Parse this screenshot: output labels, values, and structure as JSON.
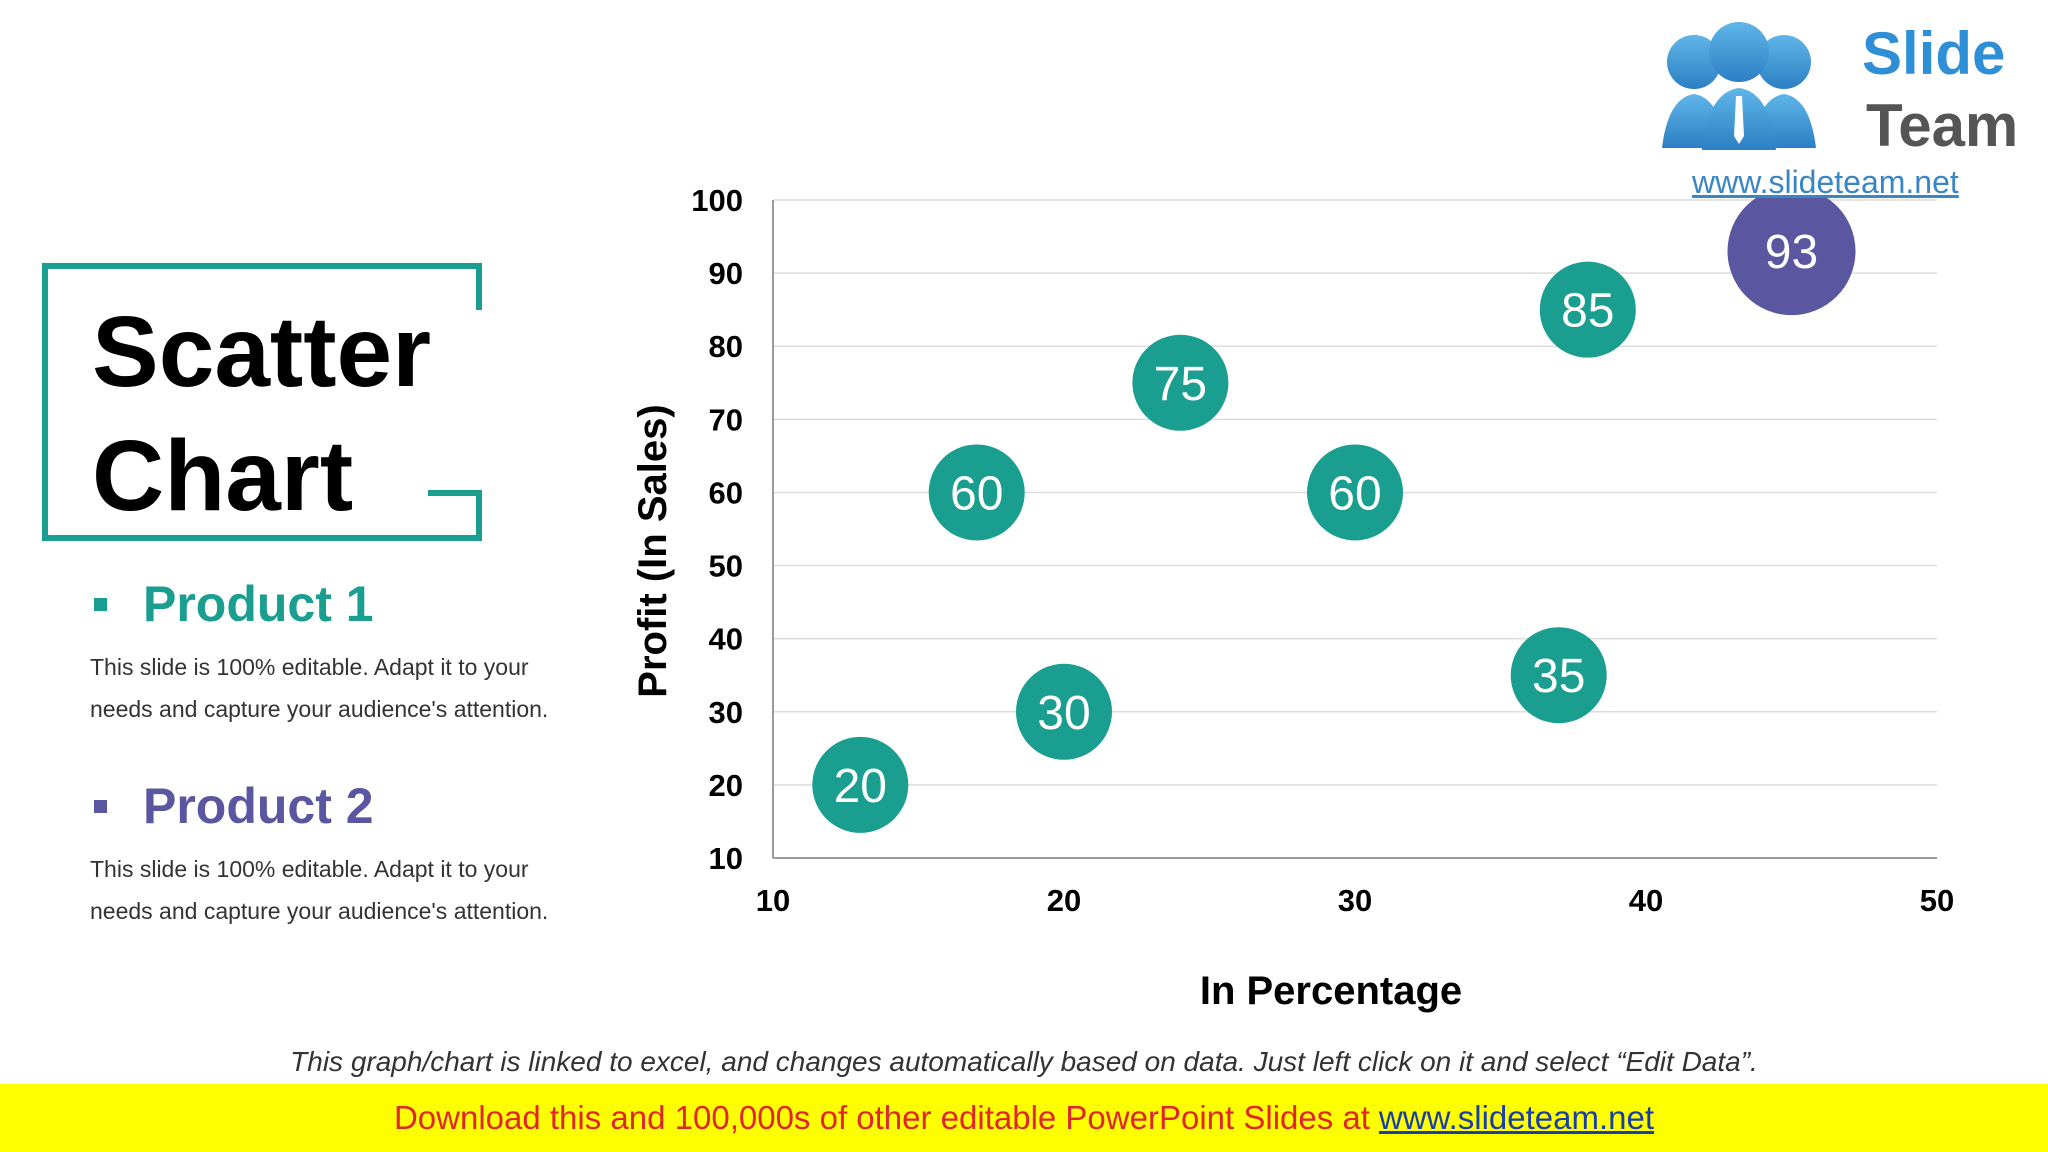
{
  "slide": {
    "title_line1": "Scatter",
    "title_line2": "Chart",
    "products": [
      {
        "name": "Product 1",
        "desc_line1": "This slide is 100% editable. Adapt it to your",
        "desc_line2": "needs and capture your audience's attention.",
        "color": "#1a9e8f"
      },
      {
        "name": "Product 2",
        "desc_line1": "This slide is 100% editable. Adapt it to your",
        "desc_line2": "needs and capture your audience's attention.",
        "color": "#5b56a0"
      }
    ],
    "note": "This graph/chart is linked to excel, and changes automatically based on data. Just left click on it and select “Edit Data”.",
    "banner_text": "Download this and 100,000s of other editable PowerPoint Slides at",
    "banner_link": "www.slideteam.net"
  },
  "logo": {
    "word1": "Slide",
    "word2": "Team",
    "url": "www.slideteam.net",
    "icon": "people-group-icon"
  },
  "colors": {
    "accent": "#1a9e8f",
    "secondary": "#5b56a0",
    "banner_bg": "#ffff00",
    "banner_text": "#e0262a"
  },
  "chart_data": {
    "type": "scatter",
    "xlabel": "In Percentage",
    "ylabel": "Profit (In Sales)",
    "xlim": [
      10,
      50
    ],
    "ylim": [
      10,
      100
    ],
    "xticks": [
      10,
      20,
      30,
      40,
      50
    ],
    "yticks": [
      10,
      20,
      30,
      40,
      50,
      60,
      70,
      80,
      90,
      100
    ],
    "grid": "horizontal",
    "series": [
      {
        "name": "Product 1",
        "color": "#1a9e8f",
        "points": [
          {
            "x": 13,
            "y": 20,
            "label": "20"
          },
          {
            "x": 17,
            "y": 60,
            "label": "60"
          },
          {
            "x": 20,
            "y": 30,
            "label": "30"
          },
          {
            "x": 24,
            "y": 75,
            "label": "75"
          },
          {
            "x": 30,
            "y": 60,
            "label": "60"
          },
          {
            "x": 37,
            "y": 35,
            "label": "35"
          },
          {
            "x": 38,
            "y": 85,
            "label": "85"
          }
        ]
      },
      {
        "name": "Product 2",
        "color": "#5b56a0",
        "points": [
          {
            "x": 45,
            "y": 93,
            "label": "93"
          }
        ]
      }
    ]
  }
}
